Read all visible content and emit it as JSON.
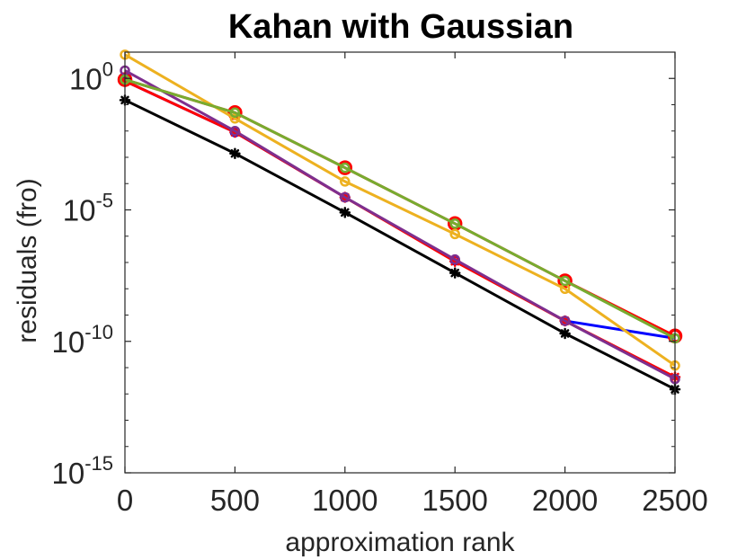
{
  "chart_data": {
    "type": "line",
    "title": "Kahan with Gaussian",
    "xlabel": "approximation rank",
    "ylabel": "residuals (fro)",
    "yscale": "log",
    "xlim": [
      0,
      2500
    ],
    "ylim": [
      1e-15,
      10
    ],
    "grid": false,
    "x": [
      0,
      500,
      1000,
      1500,
      2000,
      2500
    ],
    "xticks": [
      {
        "value": 0,
        "label": "0"
      },
      {
        "value": 500,
        "label": "500"
      },
      {
        "value": 1000,
        "label": "1000"
      },
      {
        "value": 1500,
        "label": "1500"
      },
      {
        "value": 2000,
        "label": "2000"
      },
      {
        "value": 2500,
        "label": "2500"
      }
    ],
    "yticks": [
      {
        "value": 1,
        "base": "10",
        "exp": "0"
      },
      {
        "value": 1e-05,
        "base": "10",
        "exp": "-5"
      },
      {
        "value": 1e-10,
        "base": "10",
        "exp": "-10"
      },
      {
        "value": 1e-15,
        "base": "10",
        "exp": "-15"
      }
    ],
    "series": [
      {
        "color": "#0000ff",
        "marker": "circle",
        "values": [
          0.8,
          0.009,
          3e-05,
          1.2e-07,
          6e-10,
          1.3e-10
        ]
      },
      {
        "color": "#ff0000",
        "marker": "circle-large",
        "values": [
          0.9,
          0.05,
          0.0004,
          3e-06,
          2e-08,
          1.6e-10
        ]
      },
      {
        "color": "#ff0000",
        "marker": "star",
        "values": [
          0.8,
          0.009,
          3e-05,
          1.1e-07,
          6e-10,
          4.4e-12
        ]
      },
      {
        "color": "#edb120",
        "marker": "circle",
        "values": [
          8,
          0.03,
          0.00012,
          1.2e-06,
          1e-08,
          1.2e-11
        ]
      },
      {
        "color": "#7e2f8e",
        "marker": "circle",
        "values": [
          2,
          0.01,
          3e-05,
          1.3e-07,
          6e-10,
          3.7e-12
        ]
      },
      {
        "color": "#77ac30",
        "marker": "circle",
        "values": [
          0.9,
          0.05,
          0.0004,
          3e-06,
          2e-08,
          1.3e-10
        ]
      },
      {
        "color": "#000000",
        "marker": "star",
        "values": [
          0.15,
          0.0014,
          8e-06,
          4e-08,
          2e-10,
          1.5e-12
        ]
      }
    ]
  }
}
